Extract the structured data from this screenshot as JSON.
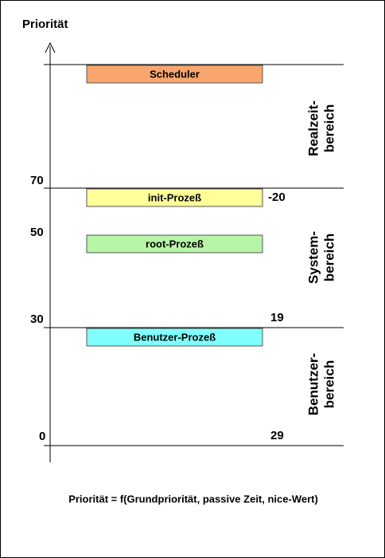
{
  "axis": {
    "title": "Priorität",
    "ticks": [
      "70",
      "50",
      "30",
      "0"
    ]
  },
  "processes": [
    {
      "label": "Scheduler",
      "color": "#f9a66e"
    },
    {
      "label": "init-Prozeß",
      "color": "#ffff99"
    },
    {
      "label": "root-Prozeß",
      "color": "#b6f5a6"
    },
    {
      "label": "Benutzer-Prozeß",
      "color": "#80ffff"
    }
  ],
  "nice_values": [
    "-20",
    "19",
    "29"
  ],
  "regions": [
    {
      "line1": "Realzeit-",
      "line2": "bereich"
    },
    {
      "line1": "System-",
      "line2": "bereich"
    },
    {
      "line1": "Benutzer-",
      "line2": "bereich"
    }
  ],
  "formula": "Priorität = f(Grundpriorität, passive Zeit, nice-Wert)"
}
